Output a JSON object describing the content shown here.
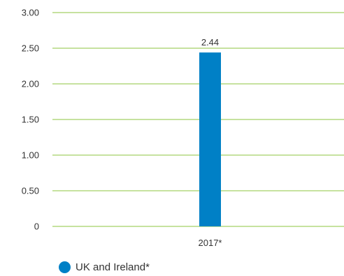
{
  "chart_data": {
    "type": "bar",
    "categories": [
      "2017*"
    ],
    "series": [
      {
        "name": "UK and Ireland*",
        "values": [
          2.44
        ],
        "color": "#0080c6"
      }
    ],
    "data_labels": [
      "2.44"
    ],
    "ylim": [
      0,
      3
    ],
    "y_ticks": [
      0,
      0.5,
      1.0,
      1.5,
      2.0,
      2.5,
      3.0
    ],
    "y_tick_labels": [
      "0",
      "0.50",
      "1.00",
      "1.50",
      "2.00",
      "2.50",
      "3.00"
    ],
    "grid": true,
    "grid_color": "#8dc63f",
    "legend_position": "bottom-left",
    "title": "",
    "xlabel": "",
    "ylabel": ""
  }
}
